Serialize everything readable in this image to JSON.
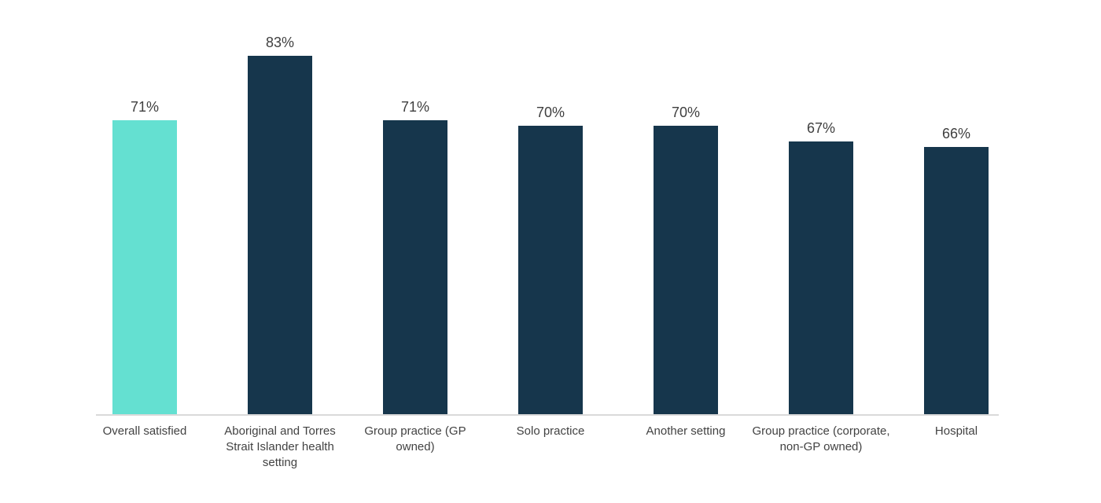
{
  "chart_data": {
    "type": "bar",
    "title": "",
    "xlabel": "",
    "ylabel": "",
    "categories": [
      "Overall satisfied",
      "Aboriginal and Torres Strait Islander health setting",
      "Group practice (GP owned)",
      "Solo practice",
      "Another setting",
      "Group practice (corporate, non-GP owned)",
      "Hospital"
    ],
    "values": [
      71,
      83,
      71,
      70,
      70,
      67,
      66
    ],
    "value_labels": [
      "71%",
      "83%",
      "71%",
      "70%",
      "70%",
      "67%",
      "66%"
    ],
    "unit": "%",
    "highlight_index": 0,
    "grid": false,
    "legend": "none",
    "y_axis_labels_shown": false,
    "ylim_hint": [
      16.3,
      100
    ],
    "colors": {
      "highlight_bar": "#64E0D1",
      "default_bar": "#16364C",
      "axis_line": "#DADADA",
      "value_label_text": "#3F3F3F",
      "category_label_text": "#424242",
      "background": "#FFFFFF"
    }
  }
}
